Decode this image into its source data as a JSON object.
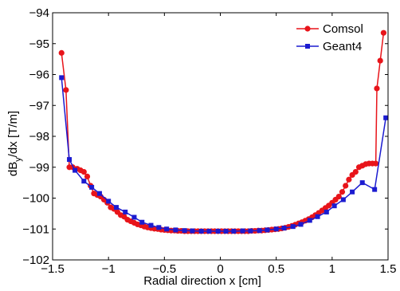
{
  "chart_data": {
    "type": "line",
    "title": "",
    "xlabel": "Radial direction x [cm]",
    "ylabel": "dB_y/dx [T/m]",
    "xlim": [
      -1.5,
      1.5
    ],
    "ylim": [
      -102,
      -94
    ],
    "xticks": [
      -1.5,
      -1,
      -0.5,
      0,
      0.5,
      1,
      1.5
    ],
    "xtick_labels": [
      "−1.5",
      "−1",
      "−0.5",
      "0",
      "0.5",
      "1",
      "1.5"
    ],
    "yticks": [
      -102,
      -101,
      -100,
      -99,
      -98,
      -97,
      -96,
      -95,
      -94
    ],
    "ytick_labels": [
      "−102",
      "−101",
      "−100",
      "−99",
      "−98",
      "−97",
      "−96",
      "−95",
      "−94"
    ],
    "grid": false,
    "legend_position": "top-right",
    "series": [
      {
        "name": "Comsol",
        "color": "#e8141a",
        "marker": "circle",
        "points": [
          [
            -1.42,
            -95.3
          ],
          [
            -1.38,
            -96.5
          ],
          [
            -1.35,
            -99.0
          ],
          [
            -1.32,
            -99.0
          ],
          [
            -1.28,
            -99.05
          ],
          [
            -1.25,
            -99.1
          ],
          [
            -1.22,
            -99.15
          ],
          [
            -1.19,
            -99.3
          ],
          [
            -1.16,
            -99.6
          ],
          [
            -1.13,
            -99.85
          ],
          [
            -1.1,
            -99.9
          ],
          [
            -1.07,
            -99.95
          ],
          [
            -1.04,
            -100.05
          ],
          [
            -1.01,
            -100.15
          ],
          [
            -0.98,
            -100.3
          ],
          [
            -0.95,
            -100.35
          ],
          [
            -0.92,
            -100.45
          ],
          [
            -0.89,
            -100.55
          ],
          [
            -0.86,
            -100.6
          ],
          [
            -0.83,
            -100.7
          ],
          [
            -0.8,
            -100.75
          ],
          [
            -0.77,
            -100.8
          ],
          [
            -0.74,
            -100.85
          ],
          [
            -0.71,
            -100.88
          ],
          [
            -0.68,
            -100.92
          ],
          [
            -0.65,
            -100.95
          ],
          [
            -0.62,
            -100.97
          ],
          [
            -0.59,
            -100.99
          ],
          [
            -0.56,
            -101.0
          ],
          [
            -0.53,
            -101.02
          ],
          [
            -0.5,
            -101.03
          ],
          [
            -0.47,
            -101.04
          ],
          [
            -0.44,
            -101.05
          ],
          [
            -0.41,
            -101.05
          ],
          [
            -0.38,
            -101.06
          ],
          [
            -0.35,
            -101.06
          ],
          [
            -0.32,
            -101.07
          ],
          [
            -0.29,
            -101.07
          ],
          [
            -0.26,
            -101.07
          ],
          [
            -0.23,
            -101.07
          ],
          [
            -0.2,
            -101.07
          ],
          [
            -0.17,
            -101.07
          ],
          [
            -0.14,
            -101.07
          ],
          [
            -0.11,
            -101.07
          ],
          [
            -0.08,
            -101.07
          ],
          [
            -0.05,
            -101.07
          ],
          [
            -0.02,
            -101.07
          ],
          [
            0.01,
            -101.07
          ],
          [
            0.04,
            -101.07
          ],
          [
            0.07,
            -101.07
          ],
          [
            0.1,
            -101.07
          ],
          [
            0.13,
            -101.07
          ],
          [
            0.16,
            -101.07
          ],
          [
            0.19,
            -101.07
          ],
          [
            0.22,
            -101.07
          ],
          [
            0.25,
            -101.07
          ],
          [
            0.28,
            -101.06
          ],
          [
            0.31,
            -101.06
          ],
          [
            0.34,
            -101.05
          ],
          [
            0.37,
            -101.05
          ],
          [
            0.4,
            -101.04
          ],
          [
            0.43,
            -101.03
          ],
          [
            0.46,
            -101.02
          ],
          [
            0.49,
            -101.01
          ],
          [
            0.52,
            -101.0
          ],
          [
            0.55,
            -100.98
          ],
          [
            0.58,
            -100.96
          ],
          [
            0.61,
            -100.93
          ],
          [
            0.64,
            -100.9
          ],
          [
            0.67,
            -100.86
          ],
          [
            0.7,
            -100.82
          ],
          [
            0.73,
            -100.78
          ],
          [
            0.76,
            -100.73
          ],
          [
            0.79,
            -100.68
          ],
          [
            0.82,
            -100.62
          ],
          [
            0.85,
            -100.55
          ],
          [
            0.88,
            -100.48
          ],
          [
            0.91,
            -100.4
          ],
          [
            0.94,
            -100.32
          ],
          [
            0.97,
            -100.24
          ],
          [
            1.0,
            -100.15
          ],
          [
            1.03,
            -100.05
          ],
          [
            1.06,
            -99.95
          ],
          [
            1.09,
            -99.8
          ],
          [
            1.12,
            -99.6
          ],
          [
            1.15,
            -99.4
          ],
          [
            1.18,
            -99.25
          ],
          [
            1.21,
            -99.15
          ],
          [
            1.24,
            -99.0
          ],
          [
            1.27,
            -98.95
          ],
          [
            1.3,
            -98.9
          ],
          [
            1.33,
            -98.88
          ],
          [
            1.36,
            -98.88
          ],
          [
            1.39,
            -98.88
          ],
          [
            1.4,
            -96.45
          ],
          [
            1.43,
            -95.55
          ],
          [
            1.46,
            -94.65
          ]
        ]
      },
      {
        "name": "Geant4",
        "color": "#1b1bd0",
        "marker": "square",
        "points": [
          [
            -1.42,
            -96.1
          ],
          [
            -1.35,
            -98.75
          ],
          [
            -1.3,
            -99.1
          ],
          [
            -1.22,
            -99.45
          ],
          [
            -1.15,
            -99.65
          ],
          [
            -1.08,
            -99.85
          ],
          [
            -1.0,
            -100.1
          ],
          [
            -0.93,
            -100.3
          ],
          [
            -0.85,
            -100.45
          ],
          [
            -0.77,
            -100.62
          ],
          [
            -0.7,
            -100.78
          ],
          [
            -0.62,
            -100.88
          ],
          [
            -0.55,
            -100.95
          ],
          [
            -0.48,
            -101.0
          ],
          [
            -0.4,
            -101.03
          ],
          [
            -0.32,
            -101.05
          ],
          [
            -0.25,
            -101.06
          ],
          [
            -0.17,
            -101.07
          ],
          [
            -0.1,
            -101.07
          ],
          [
            -0.02,
            -101.07
          ],
          [
            0.05,
            -101.07
          ],
          [
            0.12,
            -101.07
          ],
          [
            0.2,
            -101.06
          ],
          [
            0.27,
            -101.06
          ],
          [
            0.35,
            -101.05
          ],
          [
            0.42,
            -101.03
          ],
          [
            0.5,
            -101.0
          ],
          [
            0.57,
            -100.97
          ],
          [
            0.65,
            -100.92
          ],
          [
            0.72,
            -100.85
          ],
          [
            0.8,
            -100.72
          ],
          [
            0.87,
            -100.6
          ],
          [
            0.95,
            -100.45
          ],
          [
            1.02,
            -100.25
          ],
          [
            1.1,
            -100.05
          ],
          [
            1.18,
            -99.8
          ],
          [
            1.27,
            -99.5
          ],
          [
            1.38,
            -99.72
          ],
          [
            1.48,
            -97.4
          ]
        ]
      }
    ]
  }
}
